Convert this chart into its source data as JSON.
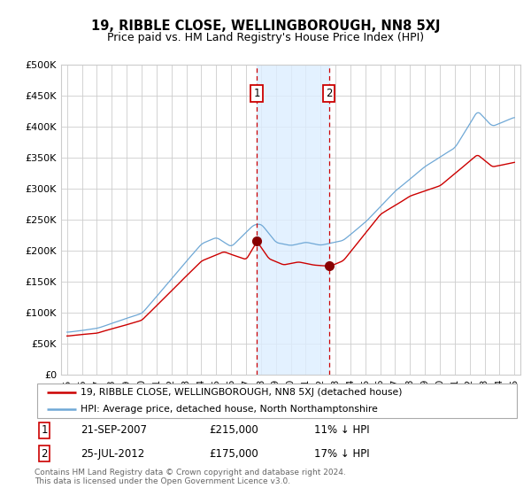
{
  "title": "19, RIBBLE CLOSE, WELLINGBOROUGH, NN8 5XJ",
  "subtitle": "Price paid vs. HM Land Registry's House Price Index (HPI)",
  "legend_line1": "19, RIBBLE CLOSE, WELLINGBOROUGH, NN8 5XJ (detached house)",
  "legend_line2": "HPI: Average price, detached house, North Northamptonshire",
  "annotation1_date": "21-SEP-2007",
  "annotation1_price": "£215,000",
  "annotation1_hpi": "11% ↓ HPI",
  "annotation2_date": "25-JUL-2012",
  "annotation2_price": "£175,000",
  "annotation2_hpi": "17% ↓ HPI",
  "footer": "Contains HM Land Registry data © Crown copyright and database right 2024.\nThis data is licensed under the Open Government Licence v3.0.",
  "hpi_color": "#6fa8d6",
  "price_color": "#cc0000",
  "annotation_box_color": "#cc0000",
  "shade_color": "#ddeeff",
  "grid_color": "#cccccc",
  "ylim": [
    0,
    500000
  ],
  "yticks": [
    0,
    50000,
    100000,
    150000,
    200000,
    250000,
    300000,
    350000,
    400000,
    450000,
    500000
  ],
  "xlim_start": 1994.6,
  "xlim_end": 2025.4,
  "sale1_year": 2007.72,
  "sale1_price": 215000,
  "sale2_year": 2012.56,
  "sale2_price": 175000,
  "shade_xmin": 2007.72,
  "shade_xmax": 2012.56
}
